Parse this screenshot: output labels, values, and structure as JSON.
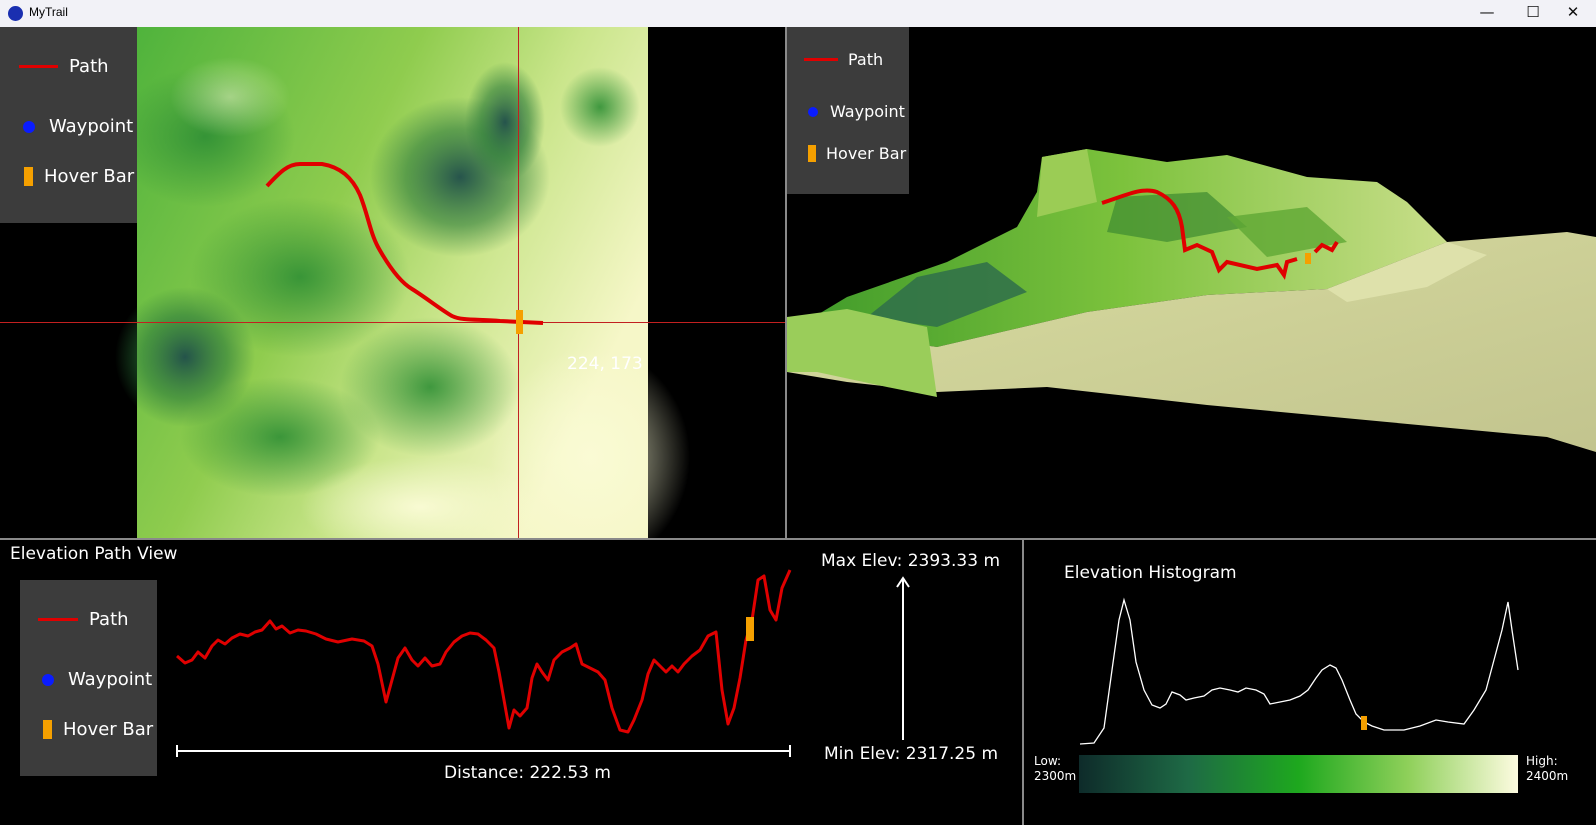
{
  "window": {
    "title": "MyTrail",
    "controls": {
      "minimize": "—",
      "maximize": "☐",
      "close": "✕"
    }
  },
  "legend": {
    "path": "Path",
    "waypoint": "Waypoint",
    "hover_bar": "Hover Bar"
  },
  "map2d": {
    "cursor_readout": "224, 173"
  },
  "elevation_view": {
    "title": "Elevation Path View",
    "max_label": "Max Elev: 2393.33 m",
    "min_label": "Min Elev: 2317.25 m",
    "distance_label": "Distance: 222.53 m"
  },
  "histogram": {
    "title": "Elevation Histogram",
    "low_label": "Low:",
    "low_value": "2300m",
    "high_label": "High:",
    "high_value": "2400m"
  },
  "colors": {
    "path": "#e00000",
    "waypoint": "#0a1cff",
    "hover_bar": "#f5a000",
    "legend_bg": "#3c3c3c",
    "crosshair": "#c22020"
  }
}
